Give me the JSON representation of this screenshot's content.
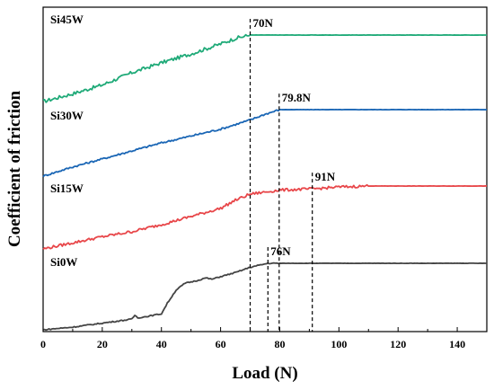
{
  "chart_data": {
    "type": "line",
    "title": "",
    "xlabel": "Load (N)",
    "ylabel": "Coefficient of friction",
    "xlim": [
      0,
      150
    ],
    "xticks": [
      0,
      20,
      40,
      60,
      80,
      100,
      120,
      140
    ],
    "grid": false,
    "legend": "none",
    "series": [
      {
        "name": "Si45W",
        "color": "#1faa78",
        "noise": 0.016,
        "points": [
          [
            0,
            0.7
          ],
          [
            10,
            0.735
          ],
          [
            20,
            0.775
          ],
          [
            30,
            0.83
          ],
          [
            40,
            0.875
          ],
          [
            50,
            0.915
          ],
          [
            60,
            0.96
          ],
          [
            65,
            0.985
          ],
          [
            70,
            1.0
          ],
          [
            150,
            1.0
          ]
        ]
      },
      {
        "name": "Si30W",
        "color": "#1a66b5",
        "noise": 0.008,
        "points": [
          [
            0,
            0.44
          ],
          [
            10,
            0.48
          ],
          [
            20,
            0.515
          ],
          [
            30,
            0.55
          ],
          [
            40,
            0.585
          ],
          [
            50,
            0.615
          ],
          [
            60,
            0.645
          ],
          [
            70,
            0.685
          ],
          [
            75,
            0.71
          ],
          [
            80,
            0.73
          ],
          [
            150,
            0.73
          ]
        ]
      },
      {
        "name": "Si15W",
        "color": "#e8474a",
        "noise": 0.013,
        "points": [
          [
            0,
            0.15
          ],
          [
            10,
            0.18
          ],
          [
            20,
            0.21
          ],
          [
            30,
            0.235
          ],
          [
            40,
            0.27
          ],
          [
            50,
            0.31
          ],
          [
            60,
            0.35
          ],
          [
            65,
            0.39
          ],
          [
            70,
            0.42
          ],
          [
            80,
            0.44
          ],
          [
            90,
            0.445
          ],
          [
            100,
            0.455
          ],
          [
            110,
            0.46
          ],
          [
            150,
            0.46
          ]
        ]
      },
      {
        "name": "Si0W",
        "color": "#444444",
        "noise": 0.005,
        "points": [
          [
            0,
            0.0
          ],
          [
            10,
            0.01
          ],
          [
            20,
            0.025
          ],
          [
            30,
            0.04
          ],
          [
            31,
            0.055
          ],
          [
            32,
            0.045
          ],
          [
            35,
            0.05
          ],
          [
            40,
            0.06
          ],
          [
            42,
            0.1
          ],
          [
            45,
            0.15
          ],
          [
            48,
            0.175
          ],
          [
            50,
            0.18
          ],
          [
            52,
            0.185
          ],
          [
            55,
            0.195
          ],
          [
            57,
            0.19
          ],
          [
            60,
            0.2
          ],
          [
            65,
            0.215
          ],
          [
            70,
            0.235
          ],
          [
            76,
            0.25
          ],
          [
            80,
            0.25
          ],
          [
            150,
            0.25
          ]
        ]
      }
    ],
    "annotations": [
      {
        "label": "70N",
        "x": 70,
        "series": "Si45W"
      },
      {
        "label": "79.8N",
        "x": 79.8,
        "series": "Si30W"
      },
      {
        "label": "91N",
        "x": 91,
        "series": "Si15W"
      },
      {
        "label": "76N",
        "x": 76,
        "series": "Si0W"
      }
    ]
  }
}
